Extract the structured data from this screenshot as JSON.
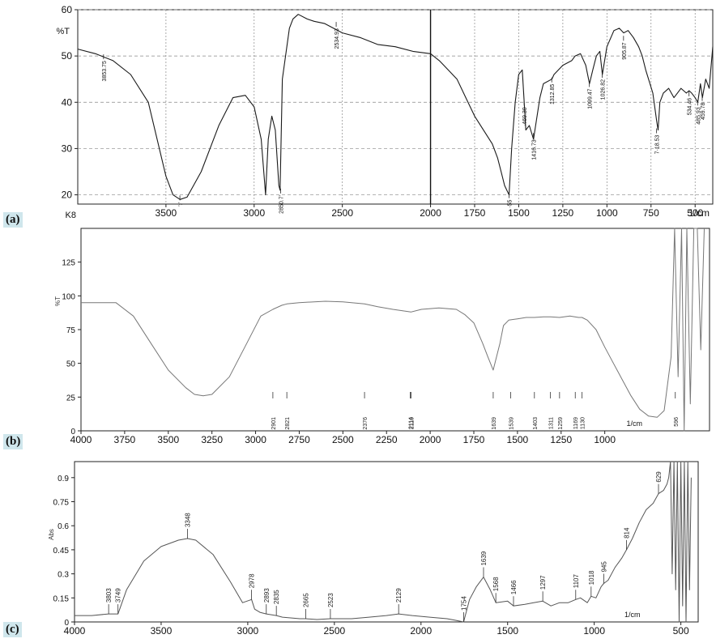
{
  "chart_data": [
    {
      "type": "line",
      "panel_label": "(a)",
      "ylabel": "%T",
      "corner_label": "K8",
      "unit_label": "1/cm",
      "xlim": [
        4000,
        400
      ],
      "ylim": [
        18,
        60
      ],
      "x_ticks": [
        3500,
        3000,
        2500,
        2000,
        1750,
        1500,
        1250,
        1000,
        750,
        500
      ],
      "x_tick_labels": [
        "3500",
        "3000",
        "2500",
        "2000",
        "1750",
        "1500",
        "1250",
        "1000",
        "750",
        "500"
      ],
      "y_ticks": [
        20,
        30,
        40,
        50,
        60
      ],
      "y_tick_labels": [
        "20",
        "30",
        "40",
        "50",
        "60"
      ],
      "grid": true,
      "series": [
        {
          "x": [
            4000,
            3900,
            3800,
            3700,
            3600,
            3550,
            3500,
            3460,
            3420,
            3380,
            3300,
            3200,
            3120,
            3050,
            3000,
            2960,
            2935,
            2920,
            2900,
            2880,
            2860,
            2853,
            2840,
            2800,
            2780,
            2750,
            2700,
            2660,
            2600,
            2550,
            2500,
            2400,
            2300,
            2200,
            2100,
            2000,
            1950,
            1900,
            1850,
            1800,
            1750,
            1700,
            1650,
            1620,
            1600,
            1580,
            1555,
            1540,
            1520,
            1500,
            1480,
            1469,
            1460,
            1440,
            1416,
            1400,
            1380,
            1360,
            1312,
            1300,
            1250,
            1200,
            1180,
            1150,
            1120,
            1099,
            1080,
            1060,
            1040,
            1026,
            1000,
            960,
            930,
            905,
            880,
            850,
            820,
            800,
            780,
            740,
            718,
            710,
            700,
            680,
            650,
            620,
            600,
            580,
            550,
            534,
            520,
            500,
            485,
            470,
            459,
            440,
            420,
            400
          ],
          "y": [
            51.5,
            50.5,
            49,
            46,
            40,
            32,
            24,
            20,
            19,
            19.5,
            25,
            35,
            41,
            41.5,
            39,
            32,
            20,
            32,
            37,
            34,
            22,
            21,
            45,
            56,
            58,
            59,
            58,
            57.5,
            57,
            56,
            55,
            54,
            52.5,
            52,
            51,
            50.5,
            49,
            47,
            45,
            41,
            37,
            34,
            31,
            28,
            25,
            22,
            20,
            30,
            40,
            46,
            47,
            40,
            34,
            35,
            32,
            36,
            41,
            44,
            45,
            46,
            48,
            49,
            50,
            50.5,
            48,
            44,
            47,
            50,
            51,
            46,
            52,
            55.5,
            56,
            55,
            55.5,
            54,
            52,
            50,
            47,
            42,
            36,
            34,
            40,
            42,
            43,
            41,
            42,
            43,
            42,
            42.5,
            42,
            41,
            40,
            44,
            41,
            45,
            43,
            52
          ]
        }
      ],
      "annotations": [
        {
          "x": 3853.75,
          "y": 50,
          "text": "3853.75"
        },
        {
          "x": 3421,
          "y": 19.5,
          "text": "’›’"
        },
        {
          "x": 2850,
          "y": 21,
          "text": "2850.7’"
        },
        {
          "x": 2534.93,
          "y": 57,
          "text": "2534.93"
        },
        {
          "x": 1555,
          "y": 20,
          "text": "·55"
        },
        {
          "x": 1469.3,
          "y": 40,
          "text": "·469.30"
        },
        {
          "x": 1416.73,
          "y": 33,
          "text": "1416.73"
        },
        {
          "x": 1312.85,
          "y": 45,
          "text": "1312.85"
        },
        {
          "x": 1099.47,
          "y": 44,
          "text": "1099.47"
        },
        {
          "x": 1026.82,
          "y": 46,
          "text": "1026.82"
        },
        {
          "x": 905.87,
          "y": 54,
          "text": "905.87"
        },
        {
          "x": 718.53,
          "y": 34,
          "text": "7·18.53"
        },
        {
          "x": 534.46,
          "y": 42,
          "text": "534.46"
        },
        {
          "x": 485.93,
          "y": 40,
          "text": "485.93"
        },
        {
          "x": 459.78,
          "y": 41,
          "text": "459.78"
        }
      ]
    },
    {
      "type": "line",
      "panel_label": "(b)",
      "ylabel": "%T",
      "unit_label": "1/cm",
      "xlim": [
        4000,
        400
      ],
      "ylim": [
        0,
        150
      ],
      "x_ticks": [
        4000,
        3750,
        3500,
        3250,
        3000,
        2750,
        2500,
        2250,
        2000,
        1750,
        1500,
        1250,
        1000
      ],
      "x_tick_labels": [
        "4000",
        "3750",
        "3500",
        "3250",
        "3000",
        "2750",
        "2500",
        "2250",
        "2000",
        "1750",
        "1500",
        "1250",
        "1000"
      ],
      "y_ticks": [
        0,
        25,
        50,
        75,
        100,
        125
      ],
      "y_tick_labels": [
        "0",
        "25",
        "50",
        "75",
        "100",
        "125"
      ],
      "grid": false,
      "series": [
        {
          "x": [
            4000,
            3800,
            3700,
            3600,
            3500,
            3400,
            3350,
            3300,
            3250,
            3150,
            3050,
            2970,
            2901,
            2850,
            2821,
            2750,
            2600,
            2500,
            2376,
            2300,
            2214,
            2110,
            2050,
            1950,
            1850,
            1800,
            1750,
            1700,
            1670,
            1639,
            1600,
            1580,
            1550,
            1500,
            1450,
            1403,
            1350,
            1311,
            1259,
            1200,
            1150,
            1130,
            1100,
            1050,
            1000,
            950,
            900,
            850,
            800,
            750,
            700,
            660,
            620,
            600,
            580,
            560,
            545,
            530,
            510,
            490,
            470,
            450,
            430
          ],
          "y": [
            95,
            95,
            85,
            65,
            45,
            32,
            27,
            26,
            27,
            40,
            65,
            85,
            90,
            93,
            94,
            95,
            96,
            95.5,
            94,
            92,
            90,
            88,
            90,
            91,
            90,
            86,
            80,
            65,
            55,
            45,
            65,
            78,
            82,
            83,
            84,
            84,
            84.5,
            84.5,
            84,
            85,
            84,
            84,
            82,
            75,
            62,
            50,
            38,
            26,
            16,
            11,
            10,
            15,
            55,
            150,
            40,
            150,
            0,
            150,
            20,
            150,
            150,
            60,
            150
          ]
        }
      ],
      "annotations": [
        {
          "x": 2901,
          "text": "2901"
        },
        {
          "x": 2821,
          "text": "2821"
        },
        {
          "x": 2376,
          "text": "2376"
        },
        {
          "x": 2114,
          "text": "2114"
        },
        {
          "x": 2110,
          "text": "2110"
        },
        {
          "x": 1639,
          "text": "1639"
        },
        {
          "x": 1539,
          "text": "1539"
        },
        {
          "x": 1403,
          "text": "1403"
        },
        {
          "x": 1311,
          "text": "1311"
        },
        {
          "x": 1259,
          "text": "1259"
        },
        {
          "x": 1169,
          "text": "1169"
        },
        {
          "x": 1130,
          "text": "1130"
        },
        {
          "x": 596,
          "text": "596"
        }
      ]
    },
    {
      "type": "line",
      "panel_label": "(c)",
      "ylabel": "Abs",
      "unit_label": "1/cm",
      "xlim": [
        4000,
        400
      ],
      "ylim": [
        0,
        1.0
      ],
      "x_ticks": [
        4000,
        3500,
        3000,
        2500,
        2000,
        1500,
        1000,
        500
      ],
      "x_tick_labels": [
        "4000",
        "3500",
        "3000",
        "2500",
        "2000",
        "1500",
        "1000",
        "500"
      ],
      "y_ticks": [
        0,
        0.15,
        0.3,
        0.45,
        0.6,
        0.75,
        0.9
      ],
      "y_tick_labels": [
        "0",
        "0.15",
        "0.3",
        "0.45",
        "0.6",
        "0.75",
        "0.9"
      ],
      "grid": false,
      "series": [
        {
          "x": [
            4000,
            3900,
            3803,
            3749,
            3700,
            3600,
            3500,
            3400,
            3348,
            3300,
            3200,
            3100,
            3030,
            2978,
            2960,
            2930,
            2893,
            2835,
            2800,
            2700,
            2665,
            2600,
            2523,
            2400,
            2300,
            2200,
            2129,
            2050,
            1950,
            1850,
            1800,
            1754,
            1720,
            1680,
            1639,
            1600,
            1568,
            1500,
            1466,
            1400,
            1350,
            1297,
            1250,
            1200,
            1150,
            1107,
            1080,
            1040,
            1018,
            990,
            960,
            945,
            920,
            880,
            840,
            814,
            780,
            740,
            700,
            660,
            629,
            600,
            580,
            570,
            560,
            550,
            540,
            530,
            520,
            510,
            500,
            490,
            480,
            470,
            460,
            450,
            440
          ],
          "y": [
            0.04,
            0.04,
            0.05,
            0.05,
            0.2,
            0.38,
            0.47,
            0.51,
            0.52,
            0.51,
            0.42,
            0.25,
            0.12,
            0.14,
            0.08,
            0.06,
            0.05,
            0.04,
            0.03,
            0.02,
            0.02,
            0.015,
            0.02,
            0.02,
            0.03,
            0.04,
            0.05,
            0.04,
            0.03,
            0.02,
            0.01,
            0.0,
            0.14,
            0.22,
            0.28,
            0.2,
            0.12,
            0.13,
            0.1,
            0.11,
            0.12,
            0.13,
            0.1,
            0.12,
            0.12,
            0.14,
            0.15,
            0.12,
            0.16,
            0.15,
            0.22,
            0.24,
            0.26,
            0.34,
            0.4,
            0.45,
            0.52,
            0.62,
            0.7,
            0.74,
            0.8,
            0.82,
            0.86,
            0.9,
            1.0,
            0.3,
            1.0,
            0.2,
            1.0,
            0.0,
            1.0,
            0.1,
            1.0,
            0.0,
            1.0,
            0.2,
            0.9
          ]
        }
      ],
      "annotations": [
        {
          "x": 3803,
          "text": "3803"
        },
        {
          "x": 3749,
          "text": "3749"
        },
        {
          "x": 3348,
          "text": "3348"
        },
        {
          "x": 2978,
          "text": "2978"
        },
        {
          "x": 2893,
          "text": "2893"
        },
        {
          "x": 2835,
          "text": "2835"
        },
        {
          "x": 2665,
          "text": "2665"
        },
        {
          "x": 2523,
          "text": "2523"
        },
        {
          "x": 2129,
          "text": "2129"
        },
        {
          "x": 1754,
          "text": "1754"
        },
        {
          "x": 1639,
          "text": "1639"
        },
        {
          "x": 1568,
          "text": "1568"
        },
        {
          "x": 1466,
          "text": "1466"
        },
        {
          "x": 1297,
          "text": "1297"
        },
        {
          "x": 1107,
          "text": "1107"
        },
        {
          "x": 1018,
          "text": "1018"
        },
        {
          "x": 945,
          "text": "945"
        },
        {
          "x": 814,
          "text": "814"
        },
        {
          "x": 629,
          "text": "629"
        }
      ]
    }
  ]
}
